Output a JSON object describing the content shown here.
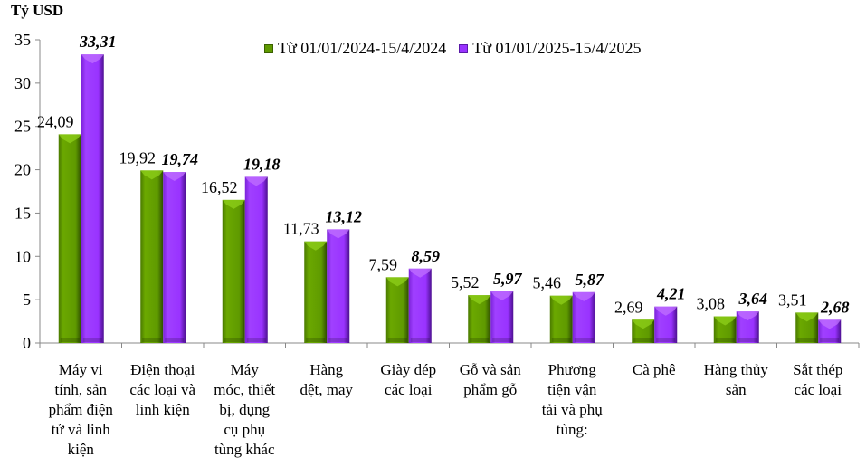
{
  "chart_data": {
    "type": "bar",
    "title": "",
    "ylabel": "Tỷ USD",
    "xlabel": "",
    "ylim": [
      0,
      35
    ],
    "yticks": [
      0,
      5,
      10,
      15,
      20,
      25,
      30,
      35
    ],
    "grid": false,
    "legend_position": "top-right",
    "categories": [
      "Máy vi tính, sản phẩm điện tử và linh kiện",
      "Điện thoại các loại và linh kiện",
      "Máy móc, thiết bị, dụng cụ phụ tùng khác",
      "Hàng dệt, may",
      "Giày dép các loại",
      "Gỗ và sản phẩm gỗ",
      "Phương tiện vận tải và phụ tùng:",
      "Cà phê",
      "Hàng thủy sản",
      "Sắt thép các loại"
    ],
    "series": [
      {
        "name": "Từ 01/01/2024-15/4/2024",
        "color": "#5f9a00",
        "label_style": "normal",
        "values": [
          24.09,
          19.92,
          16.52,
          11.73,
          7.59,
          5.52,
          5.46,
          2.69,
          3.08,
          3.51
        ],
        "labels": [
          "24,09",
          "19,92",
          "16,52",
          "11,73",
          "7,59",
          "5,52",
          "5,46",
          "2,69",
          "3,08",
          "3,51"
        ]
      },
      {
        "name": "Từ 01/01/2025-15/4/2025",
        "color": "#9933ff",
        "label_style": "bold-italic",
        "values": [
          33.31,
          19.74,
          19.18,
          13.12,
          8.59,
          5.97,
          5.87,
          4.21,
          3.64,
          2.68
        ],
        "labels": [
          "33,31",
          "19,74",
          "19,18",
          "13,12",
          "8,59",
          "5,97",
          "5,87",
          "4,21",
          "3,64",
          "2,68"
        ]
      }
    ]
  },
  "unit_label": "Tỷ USD",
  "legend": {
    "items": [
      {
        "label": "Từ 01/01/2024-15/4/2024",
        "color": "#5f9a00"
      },
      {
        "label": "Từ 01/01/2025-15/4/2025",
        "color": "#9933ff"
      }
    ]
  },
  "x_labels": [
    "Máy vi\ntính, sản\nphẩm điện\ntử và linh\nkiện",
    "Điện thoại\ncác loại và\nlinh kiện",
    "Máy\nmóc, thiết\nbị, dụng\ncụ phụ\ntùng khác",
    "Hàng\ndệt, may",
    "Giày dép\ncác loại",
    "Gỗ và sản\nphẩm gỗ",
    "Phương\ntiện vận\ntải và phụ\ntùng:",
    "Cà phê",
    "Hàng thủy\nsản",
    "Sắt thép\ncác loại"
  ]
}
